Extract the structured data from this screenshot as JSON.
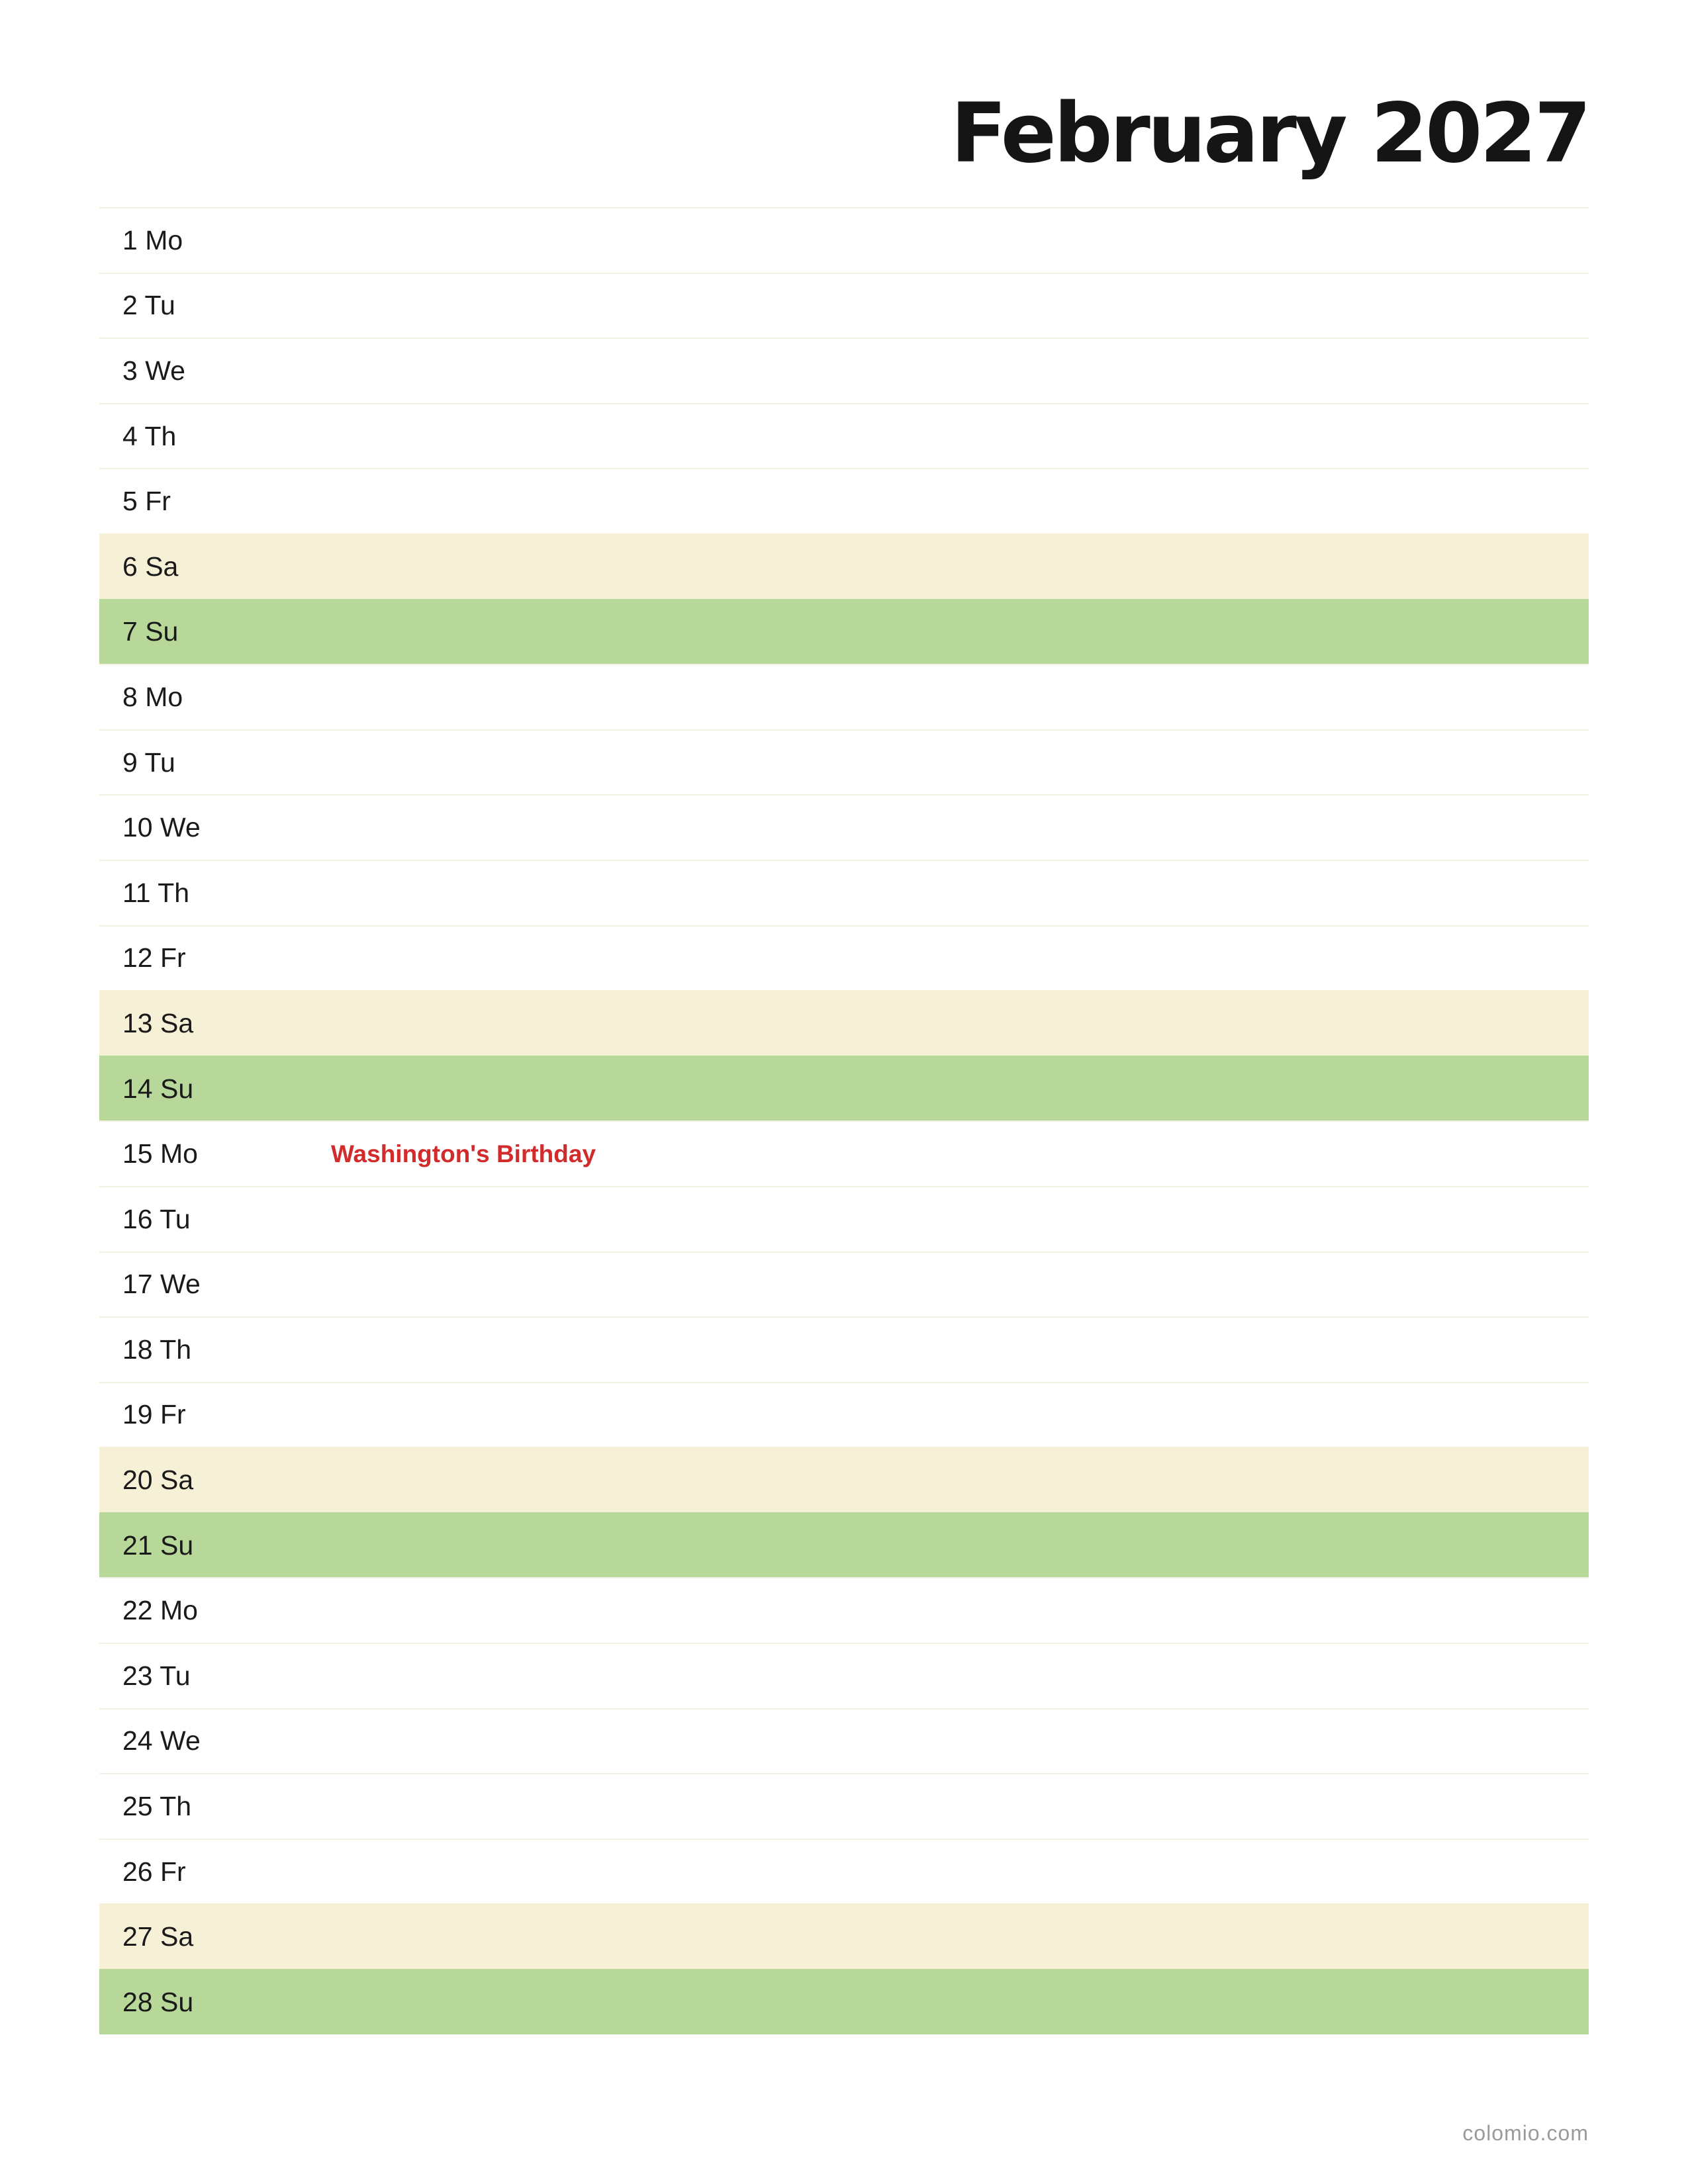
{
  "title": "February 2027",
  "days": [
    {
      "label": "1 Mo",
      "type": "weekday",
      "holiday": ""
    },
    {
      "label": "2 Tu",
      "type": "weekday",
      "holiday": ""
    },
    {
      "label": "3 We",
      "type": "weekday",
      "holiday": ""
    },
    {
      "label": "4 Th",
      "type": "weekday",
      "holiday": ""
    },
    {
      "label": "5 Fr",
      "type": "weekday",
      "holiday": ""
    },
    {
      "label": "6 Sa",
      "type": "saturday",
      "holiday": ""
    },
    {
      "label": "7 Su",
      "type": "sunday",
      "holiday": ""
    },
    {
      "label": "8 Mo",
      "type": "weekday",
      "holiday": ""
    },
    {
      "label": "9 Tu",
      "type": "weekday",
      "holiday": ""
    },
    {
      "label": "10 We",
      "type": "weekday",
      "holiday": ""
    },
    {
      "label": "11 Th",
      "type": "weekday",
      "holiday": ""
    },
    {
      "label": "12 Fr",
      "type": "weekday",
      "holiday": ""
    },
    {
      "label": "13 Sa",
      "type": "saturday",
      "holiday": ""
    },
    {
      "label": "14 Su",
      "type": "sunday",
      "holiday": ""
    },
    {
      "label": "15 Mo",
      "type": "weekday",
      "holiday": "Washington's Birthday"
    },
    {
      "label": "16 Tu",
      "type": "weekday",
      "holiday": ""
    },
    {
      "label": "17 We",
      "type": "weekday",
      "holiday": ""
    },
    {
      "label": "18 Th",
      "type": "weekday",
      "holiday": ""
    },
    {
      "label": "19 Fr",
      "type": "weekday",
      "holiday": ""
    },
    {
      "label": "20 Sa",
      "type": "saturday",
      "holiday": ""
    },
    {
      "label": "21 Su",
      "type": "sunday",
      "holiday": ""
    },
    {
      "label": "22 Mo",
      "type": "weekday",
      "holiday": ""
    },
    {
      "label": "23 Tu",
      "type": "weekday",
      "holiday": ""
    },
    {
      "label": "24 We",
      "type": "weekday",
      "holiday": ""
    },
    {
      "label": "25 Th",
      "type": "weekday",
      "holiday": ""
    },
    {
      "label": "26 Fr",
      "type": "weekday",
      "holiday": ""
    },
    {
      "label": "27 Sa",
      "type": "saturday",
      "holiday": ""
    },
    {
      "label": "28 Su",
      "type": "sunday",
      "holiday": ""
    }
  ],
  "colors": {
    "saturday": "#f5f0d6",
    "sunday": "#b8d89a",
    "holiday": "#d22b2b"
  },
  "footer": "colomio.com"
}
